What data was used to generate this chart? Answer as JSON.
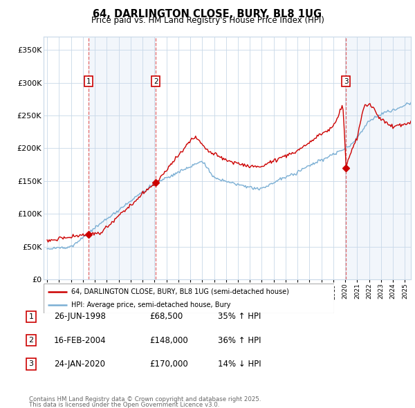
{
  "title": "64, DARLINGTON CLOSE, BURY, BL8 1UG",
  "subtitle": "Price paid vs. HM Land Registry's House Price Index (HPI)",
  "ylabel_ticks": [
    "£0",
    "£50K",
    "£100K",
    "£150K",
    "£200K",
    "£250K",
    "£300K",
    "£350K"
  ],
  "ytick_values": [
    0,
    50000,
    100000,
    150000,
    200000,
    250000,
    300000,
    350000
  ],
  "ylim": [
    0,
    370000
  ],
  "xlim_start": 1994.7,
  "xlim_end": 2025.5,
  "sale_dates": [
    1998.49,
    2004.12,
    2020.07
  ],
  "sale_prices": [
    68500,
    148000,
    170000
  ],
  "sale_labels": [
    "1",
    "2",
    "3"
  ],
  "legend_line1": "64, DARLINGTON CLOSE, BURY, BL8 1UG (semi-detached house)",
  "legend_line2": "HPI: Average price, semi-detached house, Bury",
  "table_rows": [
    {
      "num": "1",
      "date": "26-JUN-1998",
      "price": "£68,500",
      "hpi": "35% ↑ HPI"
    },
    {
      "num": "2",
      "date": "16-FEB-2004",
      "price": "£148,000",
      "hpi": "36% ↑ HPI"
    },
    {
      "num": "3",
      "date": "24-JAN-2020",
      "price": "£170,000",
      "hpi": "14% ↓ HPI"
    }
  ],
  "footnote1": "Contains HM Land Registry data © Crown copyright and database right 2025.",
  "footnote2": "This data is licensed under the Open Government Licence v3.0.",
  "hpi_color": "#7bafd4",
  "price_color": "#cc0000",
  "shade_color": "#dce8f5",
  "grid_color": "#c8d8e8",
  "vline_color": "#dd4444"
}
